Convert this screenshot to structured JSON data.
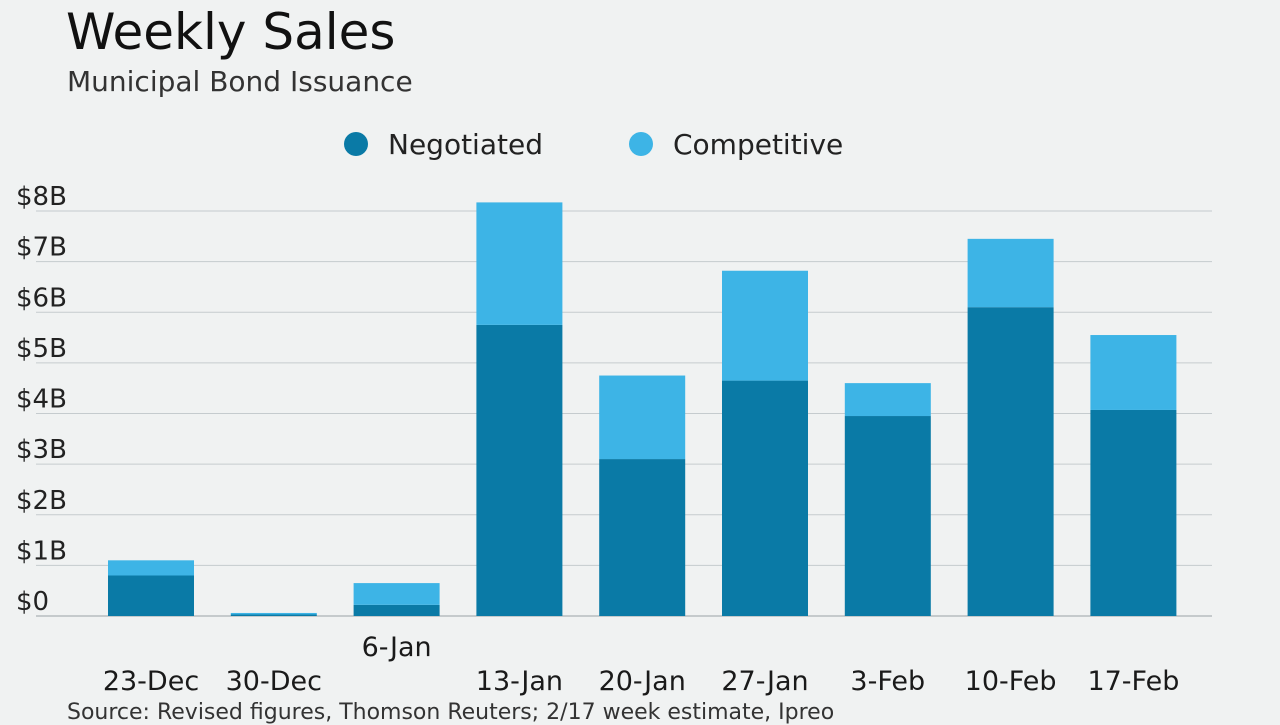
{
  "header": {
    "title": "Weekly Sales",
    "subtitle": "Municipal Bond Issuance"
  },
  "legend": {
    "items": [
      {
        "label": "Negotiated",
        "color": "#0a7aa6"
      },
      {
        "label": "Competitive",
        "color": "#3db4e6"
      }
    ]
  },
  "chart_data": {
    "type": "bar",
    "stacked": true,
    "title": "Weekly Sales",
    "subtitle": "Municipal Bond Issuance",
    "xlabel": "",
    "ylabel": "",
    "categories": [
      "23-Dec",
      "30-Dec",
      "6-Jan",
      "13-Jan",
      "20-Jan",
      "27-Jan",
      "3-Feb",
      "10-Feb",
      "17-Feb"
    ],
    "series": [
      {
        "name": "Negotiated",
        "color": "#0a7aa6",
        "values": [
          0.8,
          0.03,
          0.22,
          5.75,
          3.1,
          4.65,
          3.95,
          6.1,
          4.07
        ]
      },
      {
        "name": "Competitive",
        "color": "#3db4e6",
        "values": [
          0.3,
          0.03,
          0.43,
          2.42,
          1.65,
          2.17,
          0.65,
          1.35,
          1.48
        ]
      }
    ],
    "ylim": [
      0,
      8
    ],
    "yticks": [
      0,
      1,
      2,
      3,
      4,
      5,
      6,
      7,
      8
    ],
    "ytick_labels": [
      "$0",
      "$1B",
      "$2B",
      "$3B",
      "$4B",
      "$5B",
      "$6B",
      "$7B",
      "$8B"
    ],
    "grid": true,
    "legend_position": "top-center"
  },
  "footer": {
    "source": "Source: Revised figures, Thomson Reuters; 2/17 week estimate, Ipreo"
  }
}
